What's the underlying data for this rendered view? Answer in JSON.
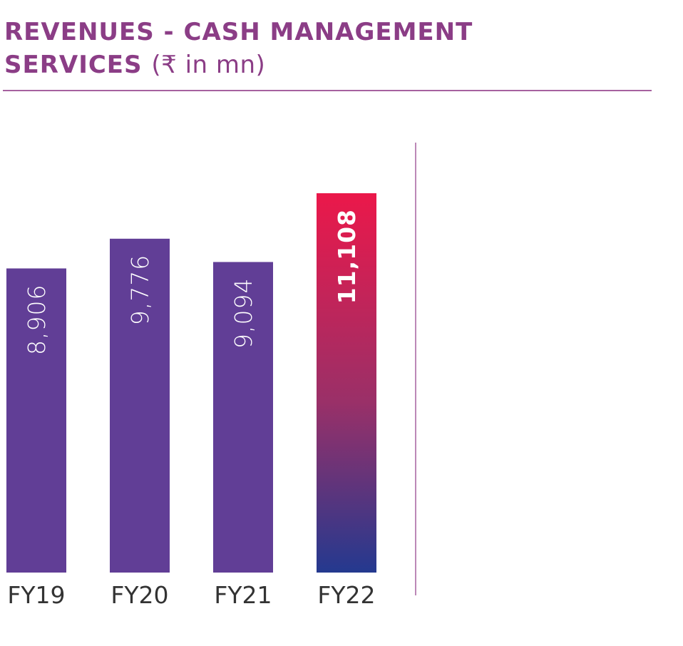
{
  "title": {
    "line1": "REVENUES - CASH MANAGEMENT",
    "line2_bold": "SERVICES",
    "line2_unit": "(₹ in mn)"
  },
  "colors": {
    "title": "#8b3d86",
    "bar": "#613e96",
    "highlight_top": "#eb184a",
    "highlight_mid": "#9a3068",
    "highlight_bottom": "#24398f",
    "axis_text": "#333333",
    "divider": "#a6619f"
  },
  "chart_data": {
    "type": "bar",
    "categories": [
      "FY19",
      "FY20",
      "FY21",
      "FY22"
    ],
    "values": [
      8906,
      9776,
      9094,
      11108
    ],
    "value_labels": [
      "8,906",
      "9,776",
      "9,094",
      "11,108"
    ],
    "highlight_index": 3,
    "orientation_of_labels": "vertical",
    "grid": false
  }
}
